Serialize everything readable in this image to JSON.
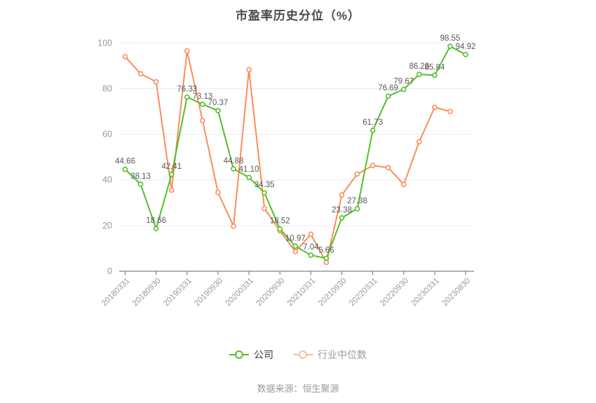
{
  "title": "市盈率历史分位（%）",
  "source": "数据来源：恒生聚源",
  "legend": {
    "items": [
      {
        "label": "公司",
        "color": "#55be28"
      },
      {
        "label": "行业中位数",
        "color": "#fa8e5a"
      }
    ]
  },
  "colors": {
    "company_green": "#55be28",
    "industry_orange": "#fa8e5a",
    "gridline": "#e7edf3",
    "axis_line": "#666666",
    "tick_label": "#999999",
    "data_label": "#595959"
  },
  "chart_data": {
    "type": "line",
    "title": "市盈率历史分位（%）",
    "xlabel": "",
    "ylabel": "",
    "ylim": [
      0,
      100
    ],
    "yticks": [
      0,
      20,
      40,
      60,
      80,
      100
    ],
    "grid": true,
    "legend_position": "bottom",
    "x_tick_labels": [
      "20180331",
      "20180930",
      "20190331",
      "20190930",
      "20200331",
      "20200930",
      "20210331",
      "20210930",
      "20220331",
      "20220930",
      "20230331",
      "20230830"
    ],
    "points_per_x_tick": 2,
    "series": [
      {
        "key": "company",
        "name": "公司",
        "color": "#55be28",
        "values": [
          44.66,
          38.13,
          18.66,
          42.41,
          76.33,
          73.13,
          70.37,
          44.88,
          41.1,
          34.35,
          18.52,
          10.97,
          7.04,
          5.66,
          23.38,
          27.38,
          61.73,
          76.69,
          79.67,
          86.26,
          85.84,
          98.55,
          94.92
        ],
        "point_labels": [
          "44.66",
          "38.13",
          "18.66",
          "42.41",
          "76.33",
          "73.13",
          "70.37",
          "44.88",
          "41.10",
          "34.35",
          "18.52",
          "10.97",
          "7.04",
          "5.66",
          "23.38",
          "27.38",
          "61.73",
          "76.69",
          "79.67",
          "86.26",
          "85.84",
          "98.55",
          "94.92"
        ]
      },
      {
        "key": "industry-median",
        "name": "行业中位数",
        "color": "#fa8e5a",
        "values": [
          94,
          86.5,
          83,
          35.5,
          96.5,
          66,
          34.5,
          19.7,
          88.3,
          27.5,
          17.7,
          8.6,
          16.2,
          3.9,
          33.4,
          42.6,
          46.3,
          45.4,
          38,
          56.7,
          71.8,
          70
        ],
        "point_labels": []
      }
    ]
  }
}
